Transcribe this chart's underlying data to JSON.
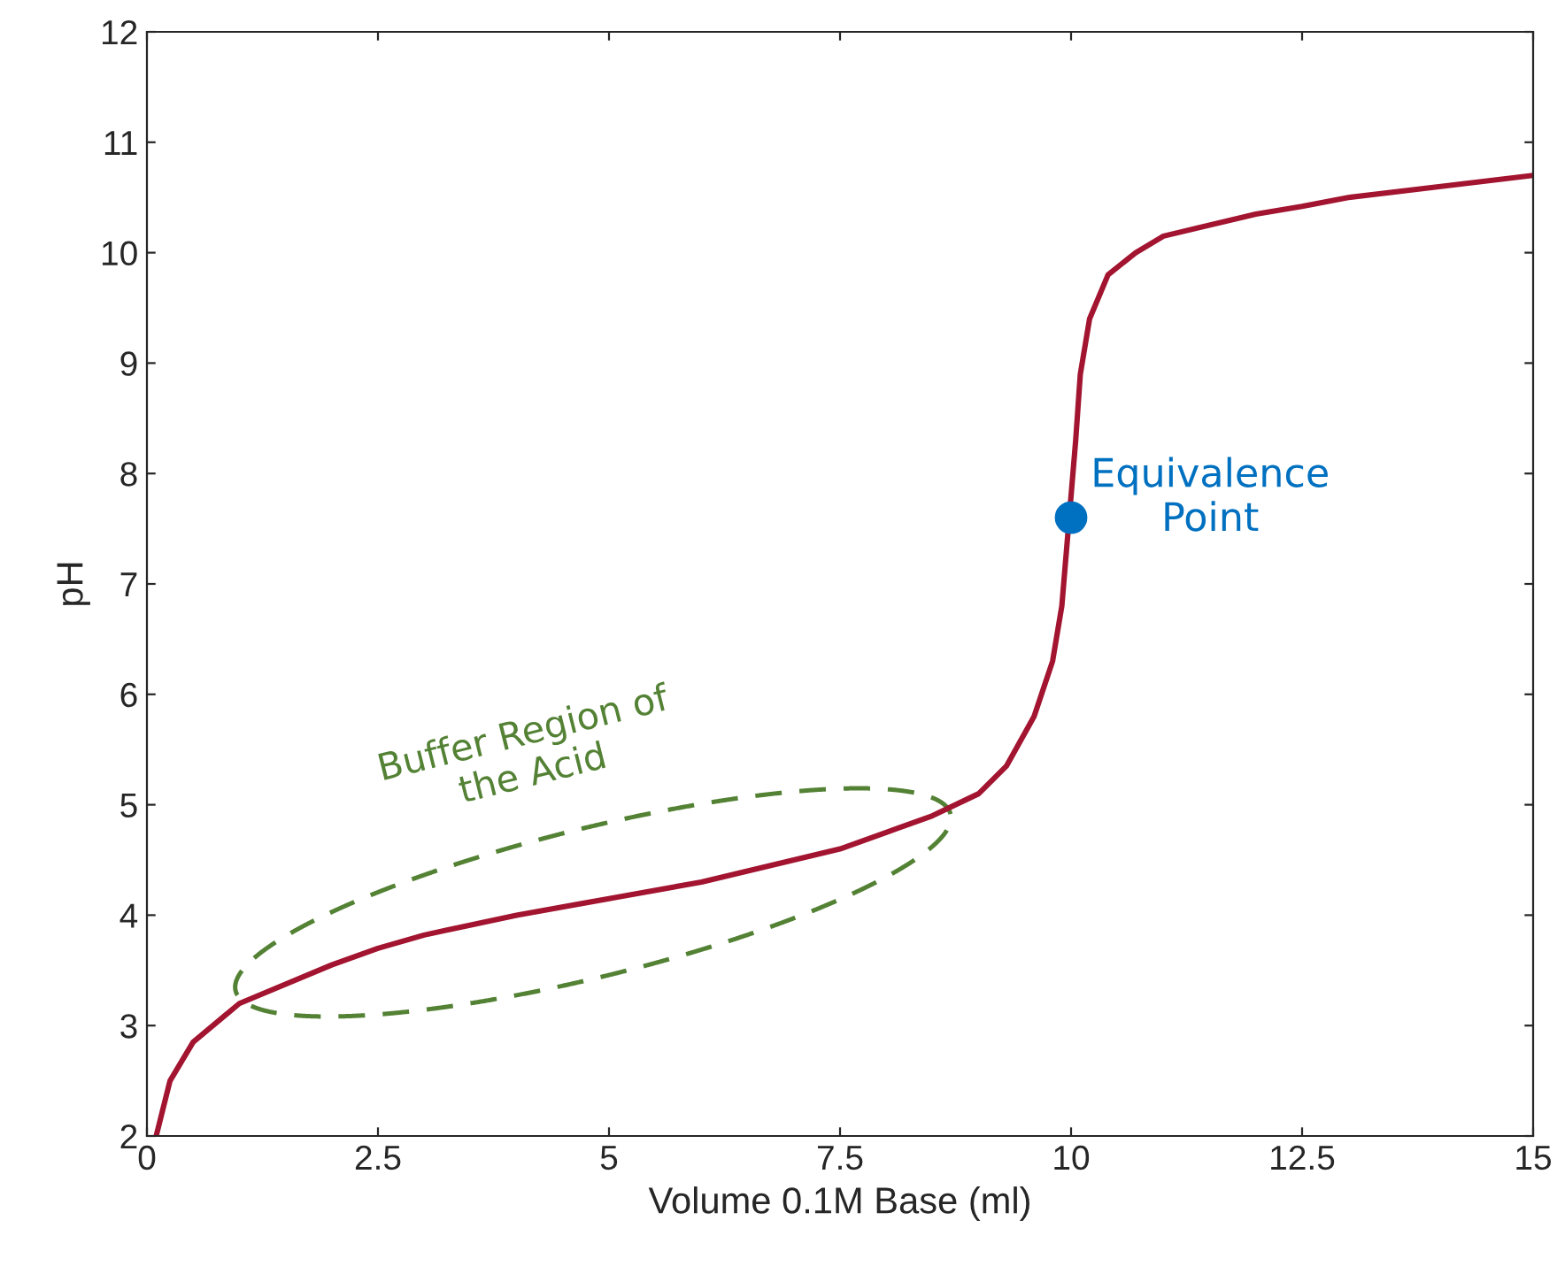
{
  "chart_data": {
    "type": "line",
    "xlabel": "Volume 0.1M Base (ml)",
    "ylabel": "pH",
    "xlim": [
      0,
      15
    ],
    "xticks": [
      0,
      2.5,
      5,
      7.5,
      10,
      12.5,
      15
    ],
    "ylim": [
      2,
      12
    ],
    "yticks": [
      2,
      3,
      4,
      5,
      6,
      7,
      8,
      9,
      10,
      11,
      12
    ],
    "grid": false,
    "legend": false,
    "series": [
      {
        "color": "#a2142f",
        "x": [
          0.1,
          0.25,
          0.5,
          1,
          2,
          2.5,
          3,
          4,
          5,
          6,
          7,
          7.5,
          8,
          8.5,
          9,
          9.3,
          9.6,
          9.8,
          9.9,
          10.05,
          10.1,
          10.2,
          10.4,
          10.7,
          11,
          12,
          12.5,
          13,
          14,
          15
        ],
        "values": [
          2.0,
          2.5,
          2.85,
          3.2,
          3.55,
          3.7,
          3.82,
          4.0,
          4.15,
          4.3,
          4.5,
          4.6,
          4.75,
          4.9,
          5.1,
          5.35,
          5.8,
          6.3,
          6.8,
          8.3,
          8.9,
          9.4,
          9.8,
          10.0,
          10.15,
          10.35,
          10.42,
          10.5,
          10.6,
          10.7
        ]
      },
      {
        "type": "scatter",
        "color": "#0070c0",
        "marker": "circle",
        "x": [
          10
        ],
        "values": [
          7.6
        ]
      }
    ],
    "annotations": [
      {
        "text": "Equivalence\nPoint",
        "x": 10,
        "y": 7.6
      },
      "Buffer Region of\nthe Acid"
    ]
  }
}
